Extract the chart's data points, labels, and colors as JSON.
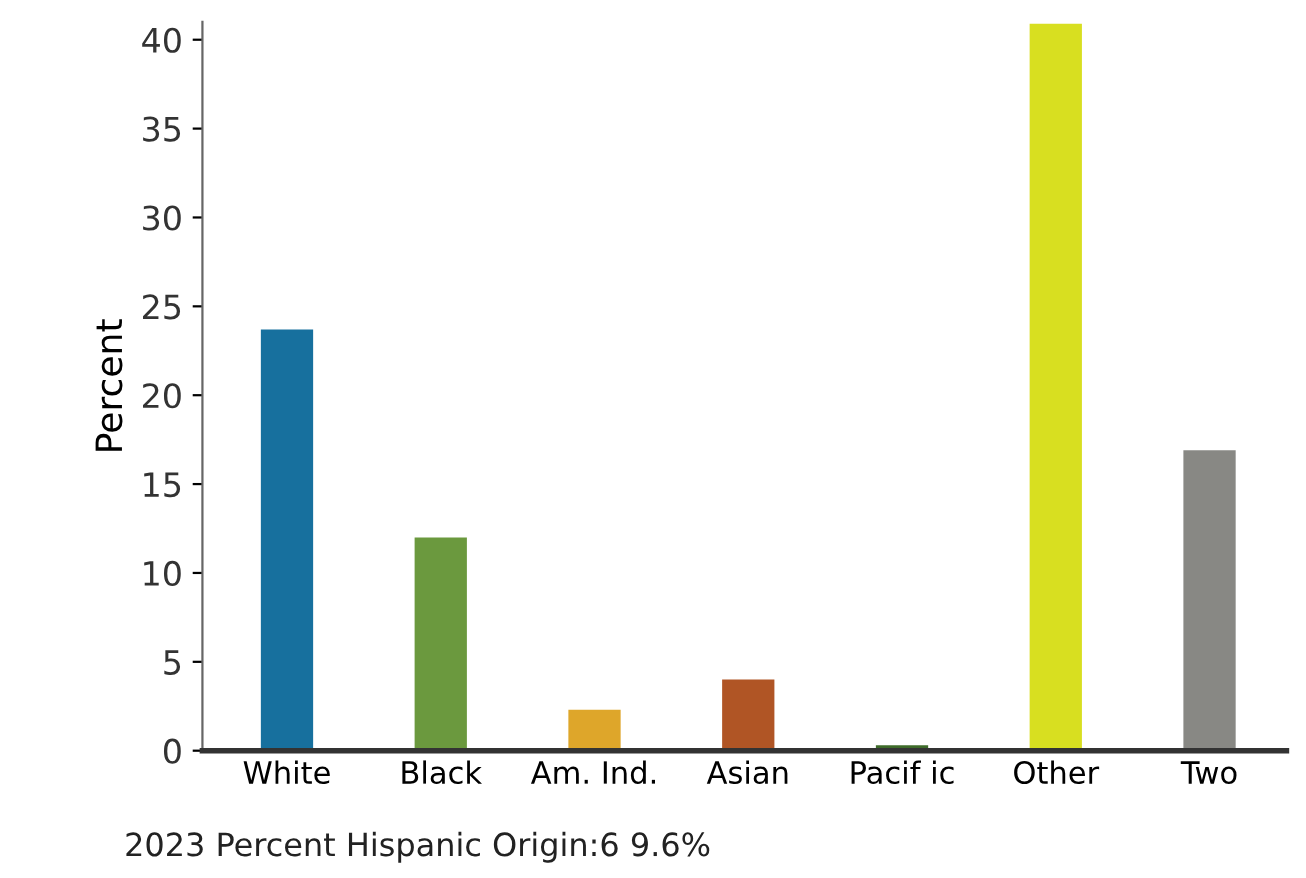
{
  "chart_data": {
    "type": "bar",
    "ylabel": "Percent",
    "categories": [
      "White",
      "Black",
      "Am. Ind.",
      "Asian",
      "Pacif ic",
      "Other",
      "Two"
    ],
    "values": [
      23.7,
      12.0,
      2.3,
      4.0,
      0.3,
      40.9,
      16.9
    ],
    "colors": [
      "#17709e",
      "#6b993e",
      "#dea62a",
      "#b05525",
      "#3e6b2a",
      "#d8df20",
      "#888884"
    ],
    "ylim": [
      0,
      41
    ],
    "yticks": [
      0,
      5,
      10,
      15,
      20,
      25,
      30,
      35,
      40
    ],
    "grid": false,
    "annotations": [
      "2023 Percent Hispanic Origin:6 9.6%"
    ]
  }
}
